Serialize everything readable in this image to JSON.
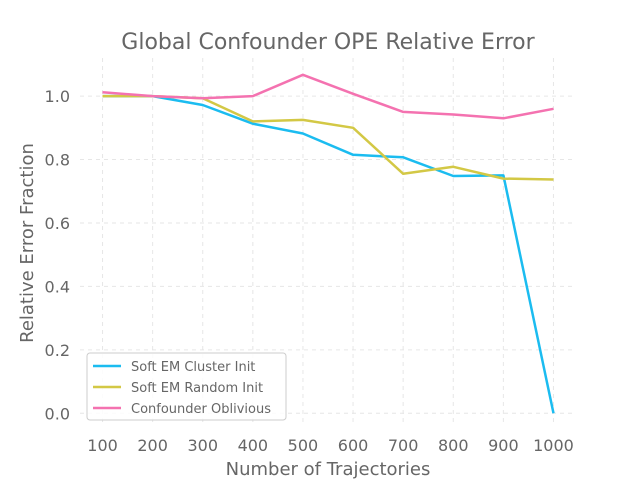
{
  "chart_data": {
    "type": "line",
    "title": "Global Confounder OPE Relative Error",
    "xlabel": "Number of Trajectories",
    "ylabel": "Relative Error Fraction",
    "x": [
      100,
      200,
      300,
      400,
      500,
      600,
      700,
      800,
      900,
      1000
    ],
    "xticks": [
      "100",
      "200",
      "300",
      "400",
      "500",
      "600",
      "700",
      "800",
      "900",
      "1000"
    ],
    "yticks": [
      "0.0",
      "0.2",
      "0.4",
      "0.6",
      "0.8",
      "1.0"
    ],
    "xlim": [
      55,
      1045
    ],
    "ylim": [
      -0.04,
      1.12
    ],
    "grid": true,
    "legend_position": "lower-left",
    "series": [
      {
        "name": "Soft EM Cluster Init",
        "color": "#1bbcf0",
        "values": [
          1.0,
          1.0,
          0.972,
          0.913,
          0.882,
          0.815,
          0.807,
          0.748,
          0.75,
          0.0
        ]
      },
      {
        "name": "Soft EM Random Init",
        "color": "#d3c845",
        "values": [
          1.0,
          1.0,
          0.993,
          0.92,
          0.925,
          0.9,
          0.755,
          0.777,
          0.74,
          0.737
        ]
      },
      {
        "name": "Confounder Oblivious",
        "color": "#f472b0",
        "values": [
          1.012,
          1.0,
          0.993,
          1.0,
          1.067,
          1.007,
          0.95,
          0.942,
          0.93,
          0.96
        ]
      }
    ]
  }
}
